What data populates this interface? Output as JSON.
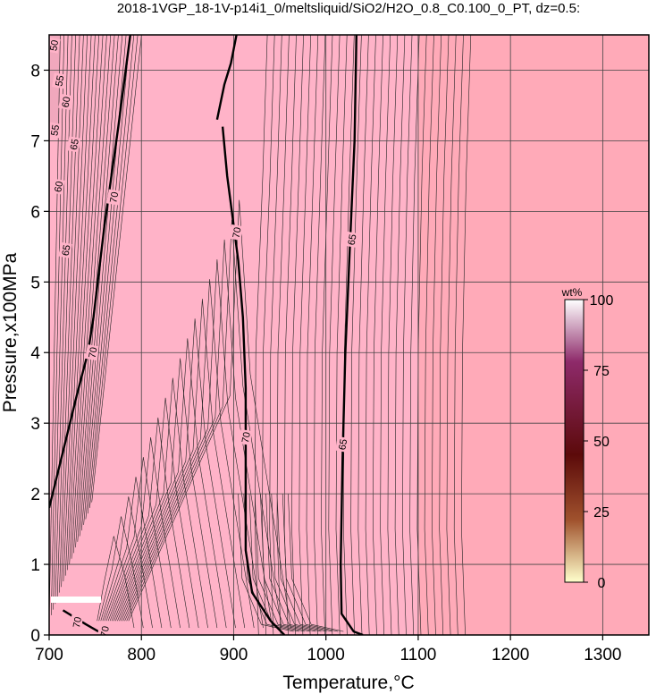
{
  "chart_data": {
    "type": "contour",
    "title": "2018-1VGP_18-1V-p14i1_0/meltsliquid/SiO2/H2O_0.8_C0.100_0_PT, dz=0.5:",
    "xlabel": "Temperature,°C",
    "ylabel": "Pressure,x100MPa",
    "xlim": [
      700,
      1350
    ],
    "ylim": [
      0,
      8.5
    ],
    "x_ticks": [
      700,
      800,
      900,
      1000,
      1100,
      1200,
      1300
    ],
    "y_ticks": [
      0,
      1,
      2,
      3,
      4,
      5,
      6,
      7,
      8
    ],
    "grid": true,
    "background_color": "#ffb3c8",
    "highT_color": "#ffaab8",
    "colorbar": {
      "unit": "wt%",
      "range": [
        0,
        100
      ],
      "ticks": [
        0,
        25,
        50,
        75,
        100
      ],
      "stops": [
        "#ffffcc",
        "#a0522d",
        "#5c0a0a",
        "#8e2a6a",
        "#ffffff"
      ]
    },
    "contour_interval": 0.5,
    "bold_contours": [
      {
        "level": 70,
        "points": [
          [
            700,
            1.8
          ],
          [
            715,
            2.6
          ],
          [
            730,
            3.4
          ],
          [
            742,
            4.0
          ],
          [
            748,
            4.5
          ],
          [
            760,
            5.8
          ],
          [
            775,
            7.2
          ],
          [
            788,
            8.5
          ]
        ],
        "labels": [
          {
            "text": "70",
            "at": [
              747,
              4.0
            ]
          },
          {
            "text": "70",
            "at": [
              770,
              6.2
            ]
          }
        ]
      },
      {
        "level": 70,
        "points": [
          [
            888,
            7.2
          ],
          [
            893,
            6.5
          ],
          [
            898,
            6.0
          ],
          [
            905,
            5.3
          ],
          [
            910,
            4.5
          ],
          [
            913,
            3.5
          ],
          [
            913,
            2.5
          ],
          [
            913,
            1.2
          ],
          [
            920,
            0.6
          ],
          [
            940,
            0.2
          ],
          [
            955,
            0.0
          ]
        ],
        "labels": [
          {
            "text": "70",
            "at": [
              903,
              5.7
            ]
          },
          {
            "text": "70",
            "at": [
              913,
              2.8
            ]
          }
        ]
      },
      {
        "level": 70,
        "points": [
          [
            882,
            7.3
          ],
          [
            890,
            7.8
          ],
          [
            897,
            8.1
          ],
          [
            903,
            8.5
          ]
        ],
        "labels": []
      },
      {
        "level": 65,
        "points": [
          [
            1033,
            8.5
          ],
          [
            1031,
            7.0
          ],
          [
            1026,
            5.5
          ],
          [
            1021,
            4.0
          ],
          [
            1018,
            2.5
          ],
          [
            1016,
            1.0
          ],
          [
            1017,
            0.3
          ],
          [
            1030,
            0.05
          ],
          [
            1040,
            0.0
          ]
        ],
        "labels": [
          {
            "text": "65",
            "at": [
              1028,
              5.6
            ]
          },
          {
            "text": "65",
            "at": [
              1018,
              2.7
            ]
          }
        ]
      },
      {
        "level": 70,
        "points": [
          [
            715,
            0.35
          ],
          [
            740,
            0.15
          ],
          [
            760,
            0.0
          ]
        ],
        "labels": [
          {
            "text": "70",
            "at": [
              730,
              0.18
            ]
          },
          {
            "text": "70",
            "at": [
              760,
              0.05
            ]
          }
        ]
      }
    ],
    "steep_contour_labels": [
      {
        "text": "50",
        "at": [
          705,
          8.35
        ]
      },
      {
        "text": "55",
        "at": [
          711,
          7.85
        ]
      },
      {
        "text": "60",
        "at": [
          718,
          7.55
        ]
      },
      {
        "text": "55",
        "at": [
          706,
          7.15
        ]
      },
      {
        "text": "65",
        "at": [
          727,
          6.95
        ]
      },
      {
        "text": "60",
        "at": [
          710,
          6.35
        ]
      },
      {
        "text": "65",
        "at": [
          718,
          5.45
        ]
      }
    ]
  }
}
